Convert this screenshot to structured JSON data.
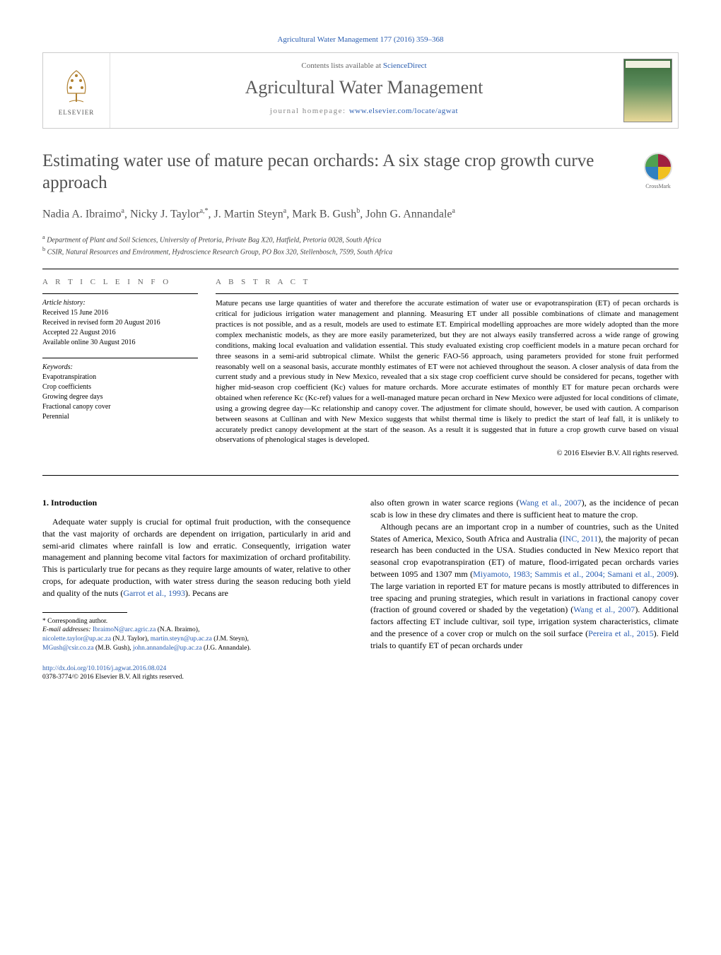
{
  "top_citation_link": "Agricultural Water Management 177 (2016) 359–368",
  "header": {
    "elsevier": "ELSEVIER",
    "contents_prefix": "Contents lists available at ",
    "contents_link": "ScienceDirect",
    "journal_title": "Agricultural Water Management",
    "homepage_prefix": "journal homepage: ",
    "homepage_link": "www.elsevier.com/locate/agwat"
  },
  "crossmark_label": "CrossMark",
  "article": {
    "title": "Estimating water use of mature pecan orchards: A six stage crop growth curve approach",
    "authors_html": "Nadia A. Ibraimo<sup>a</sup>, Nicky J. Taylor<sup>a,*</sup>, J. Martin Steyn<sup>a</sup>, Mark B. Gush<sup>b</sup>, John G. Annandale<sup>a</sup>",
    "affiliations": [
      "a Department of Plant and Soil Sciences, University of Pretoria, Private Bag X20, Hatfield, Pretoria 0028, South Africa",
      "b CSIR, Natural Resources and Environment, Hydroscience Research Group, PO Box 320, Stellenbosch, 7599, South Africa"
    ]
  },
  "article_info": {
    "heading": "A R T I C L E   I N F O",
    "history_label": "Article history:",
    "history": [
      "Received 15 June 2016",
      "Received in revised form 20 August 2016",
      "Accepted 22 August 2016",
      "Available online 30 August 2016"
    ],
    "keywords_label": "Keywords:",
    "keywords": [
      "Evapotranspiration",
      "Crop coefficients",
      "Growing degree days",
      "Fractional canopy cover",
      "Perennial"
    ]
  },
  "abstract": {
    "heading": "A B S T R A C T",
    "text": "Mature pecans use large quantities of water and therefore the accurate estimation of water use or evapotranspiration (ET) of pecan orchards is critical for judicious irrigation water management and planning. Measuring ET under all possible combinations of climate and management practices is not possible, and as a result, models are used to estimate ET. Empirical modelling approaches are more widely adopted than the more complex mechanistic models, as they are more easily parameterized, but they are not always easily transferred across a wide range of growing conditions, making local evaluation and validation essential. This study evaluated existing crop coefficient models in a mature pecan orchard for three seasons in a semi-arid subtropical climate. Whilst the generic FAO-56 approach, using parameters provided for stone fruit performed reasonably well on a seasonal basis, accurate monthly estimates of ET were not achieved throughout the season. A closer analysis of data from the current study and a previous study in New Mexico, revealed that a six stage crop coefficient curve should be considered for pecans, together with higher mid-season crop coefficient (Kc) values for mature orchards. More accurate estimates of monthly ET for mature pecan orchards were obtained when reference Kc (Kc-ref) values for a well-managed mature pecan orchard in New Mexico were adjusted for local conditions of climate, using a growing degree day—Kc relationship and canopy cover. The adjustment for climate should, however, be used with caution. A comparison between seasons at Cullinan and with New Mexico suggests that whilst thermal time is likely to predict the start of leaf fall, it is unlikely to accurately predict canopy development at the start of the season. As a result it is suggested that in future a crop growth curve based on visual observations of phenological stages is developed.",
    "copyright": "© 2016 Elsevier B.V. All rights reserved."
  },
  "body": {
    "intro_heading": "1.  Introduction",
    "col1_p1": "Adequate water supply is crucial for optimal fruit production, with the consequence that the vast majority of orchards are dependent on irrigation, particularly in arid and semi-arid climates where rainfall is low and erratic. Consequently, irrigation water management and planning become vital factors for maximization of orchard profitability. This is particularly true for pecans as they require large amounts of water, relative to other crops, for adequate production, with water stress during the season reducing both yield and quality of the nuts (",
    "col1_cite1": "Garrot et al., 1993",
    "col1_p1b": "). Pecans are",
    "col2_p1a": "also often grown in water scarce regions (",
    "col2_cite1": "Wang et al., 2007",
    "col2_p1b": "), as the incidence of pecan scab is low in these dry climates and there is sufficient heat to mature the crop.",
    "col2_p2a": "Although pecans are an important crop in a number of countries, such as the United States of America, Mexico, South Africa and Australia (",
    "col2_cite2": "INC, 2011",
    "col2_p2b": "), the majority of pecan research has been conducted in the USA. Studies conducted in New Mexico report that seasonal crop evapotranspiration (ET) of mature, flood-irrigated pecan orchards varies between 1095 and 1307 mm (",
    "col2_cite3": "Miyamoto, 1983; Sammis et al., 2004; Samani et al., 2009",
    "col2_p2c": "). The large variation in reported ET for mature pecans is mostly attributed to differences in tree spacing and pruning strategies, which result in variations in fractional canopy cover (fraction of ground covered or shaded by the vegetation) (",
    "col2_cite4": "Wang et al., 2007",
    "col2_p2d": "). Additional factors affecting ET include cultivar, soil type, irrigation system characteristics, climate and the presence of a cover crop or mulch on the soil surface (",
    "col2_cite5": "Pereira et al., 2015",
    "col2_p2e": "). Field trials to quantify ET of pecan orchards under"
  },
  "footnotes": {
    "corresponding": "* Corresponding author.",
    "email_label": "E-mail addresses: ",
    "emails": [
      {
        "addr": "IbraimoN@arc.agric.za",
        "name": "(N.A. Ibraimo),"
      },
      {
        "addr": "nicolette.taylor@up.ac.za",
        "name": "(N.J. Taylor),"
      },
      {
        "addr": "martin.steyn@up.ac.za",
        "name": "(J.M. Steyn),"
      },
      {
        "addr": "MGush@csir.co.za",
        "name": "(M.B. Gush),"
      },
      {
        "addr": "john.annandale@up.ac.za",
        "name": "(J.G. Annandale)."
      }
    ]
  },
  "doi": {
    "link": "http://dx.doi.org/10.1016/j.agwat.2016.08.024",
    "issn_line": "0378-3774/© 2016 Elsevier B.V. All rights reserved."
  },
  "colors": {
    "link": "#2a5db0",
    "heading_grey": "#505050",
    "text": "#000000"
  }
}
